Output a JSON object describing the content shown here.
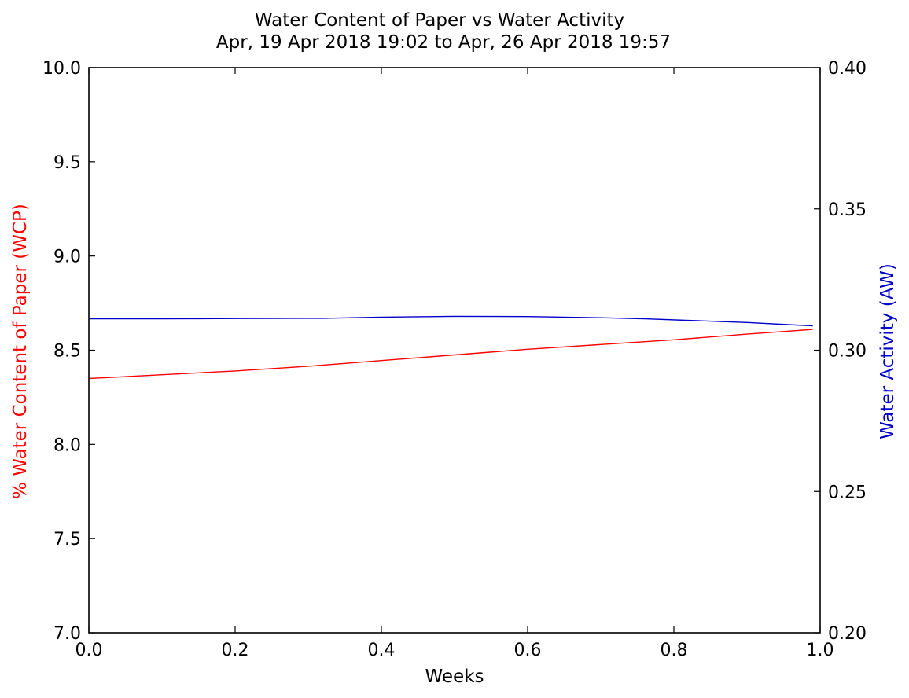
{
  "chart_data": {
    "type": "line",
    "title": "Water Content of Paper vs Water Activity",
    "subtitle": "Apr, 19 Apr 2018 19:02 to Apr, 26 Apr 2018 19:57",
    "xlabel": "Weeks",
    "ylabel_left": "% Water Content of Paper (WCP)",
    "ylabel_right": "Water Activity (AW)",
    "xlim": [
      0.0,
      1.0
    ],
    "ylim_left": [
      7.0,
      10.0
    ],
    "ylim_right": [
      0.2,
      0.4
    ],
    "x_ticks": [
      "0.0",
      "0.2",
      "0.4",
      "0.6",
      "0.8",
      "1.0"
    ],
    "y_left_ticks": [
      "7.0",
      "7.5",
      "8.0",
      "8.5",
      "9.0",
      "9.5",
      "10.0"
    ],
    "y_right_ticks": [
      "0.20",
      "0.25",
      "0.30",
      "0.35",
      "0.40"
    ],
    "grid": false,
    "colors": {
      "wcp": "#ff0000",
      "aw": "#0000cc",
      "axes": "#000000"
    },
    "series": [
      {
        "axis": "left",
        "color": "#ff0000",
        "x": [
          0.0,
          0.1,
          0.2,
          0.3,
          0.4,
          0.5,
          0.6,
          0.7,
          0.8,
          0.9,
          0.99
        ],
        "y": [
          8.35,
          8.37,
          8.39,
          8.415,
          8.445,
          8.475,
          8.505,
          8.53,
          8.555,
          8.585,
          8.61
        ]
      },
      {
        "axis": "right",
        "color": "#0000cc",
        "x": [
          0.0,
          0.1,
          0.2,
          0.32,
          0.4,
          0.5,
          0.6,
          0.7,
          0.76,
          0.9,
          0.99
        ],
        "y": [
          0.3111,
          0.3111,
          0.3112,
          0.3113,
          0.3117,
          0.312,
          0.3119,
          0.3115,
          0.3111,
          0.3098,
          0.3086
        ]
      }
    ]
  }
}
